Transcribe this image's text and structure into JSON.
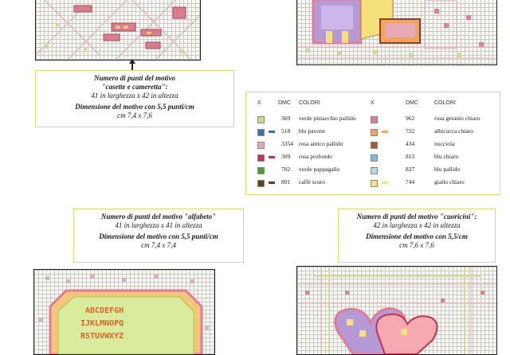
{
  "motif_casette": {
    "title": "Numero di punti del motivo",
    "name": "\"casette e cameretta\":",
    "size": "41 in larghezza x 42 in altezza",
    "dim_title": "Dimensione del motivo con 5,5 punti/cm",
    "dim_value": "cm 7,4 x 7,6"
  },
  "motif_alfabeto": {
    "title": "Numero di punti del motivo \"alfabeto\"",
    "size": "41 in larghezza x 41 in altezza",
    "dim_title": "Dimensione del motivo con 5,5 punti/cm",
    "dim_value": "cm 7,4 x 7,4"
  },
  "motif_cuoricini": {
    "title": "Numero di punti del motivo \"cuoricini\":",
    "size": "42 in larghezza x 42 in altezza",
    "dim_title": "Dimensione del motivo con 5,5/cm",
    "dim_value": "cm 7,6 x 7,6"
  },
  "legend": {
    "headers": {
      "x": "X",
      "dmc": "DMC",
      "colori": "COLORI"
    },
    "left": [
      {
        "dmc": "369",
        "color": "verde pistacchio pallido",
        "hex": "#c9dd86",
        "dash": false
      },
      {
        "dmc": "518",
        "color": "blu pavone",
        "hex": "#3d6fb0",
        "dash": true
      },
      {
        "dmc": "3354",
        "color": "rosa antico pallido",
        "hex": "#e8a9b6",
        "dash": false
      },
      {
        "dmc": "309",
        "color": "rosa profondo",
        "hex": "#c2334f",
        "dash": true
      },
      {
        "dmc": "702",
        "color": "verde pappagallo",
        "hex": "#44a038",
        "dash": false
      },
      {
        "dmc": "801",
        "color": "caffè scuro",
        "hex": "#6b3a1c",
        "dash": true
      }
    ],
    "right": [
      {
        "dmc": "962",
        "color": "rosa geranio chiaro",
        "hex": "#e07c95",
        "dash": false
      },
      {
        "dmc": "722",
        "color": "albicocca chiaro",
        "hex": "#f3a35a",
        "dash": true
      },
      {
        "dmc": "434",
        "color": "nocciola",
        "hex": "#9a6030",
        "dash": false
      },
      {
        "dmc": "813",
        "color": "blu chiaro",
        "hex": "#8cb5dc",
        "dash": false
      },
      {
        "dmc": "827",
        "color": "blu pallido",
        "hex": "#bcd4ea",
        "dash": false
      },
      {
        "dmc": "744",
        "color": "giallo chiaro",
        "hex": "#f6e07a",
        "dash": true
      }
    ]
  },
  "alphabet_rows": [
    "ABCDEFGH",
    "IJKLMNOPQ",
    "RSTUVWXYZ"
  ]
}
